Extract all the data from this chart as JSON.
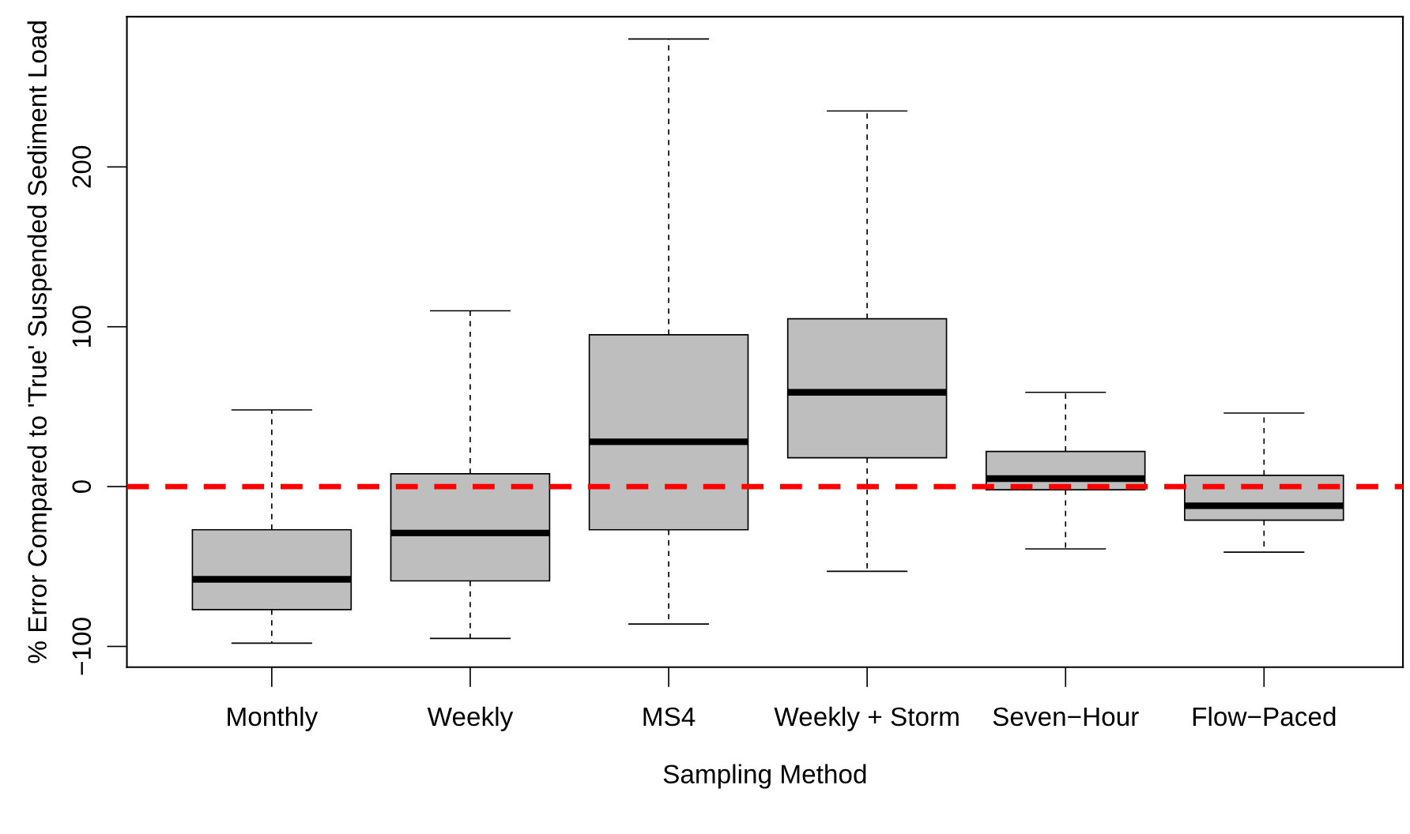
{
  "chart_data": {
    "type": "box",
    "xlabel": "Sampling Method",
    "ylabel": "% Error Compared to 'True' Suspended Sediment Load",
    "categories": [
      "Monthly",
      "Weekly",
      "MS4",
      "Weekly + Storm",
      "Seven−Hour",
      "Flow−Paced"
    ],
    "boxes": [
      {
        "low": -98,
        "q1": -77,
        "median": -58,
        "q3": -27,
        "high": 48
      },
      {
        "low": -95,
        "q1": -59,
        "median": -29,
        "q3": 8,
        "high": 110
      },
      {
        "low": -86,
        "q1": -27,
        "median": 28,
        "q3": 95,
        "high": 280
      },
      {
        "low": -53,
        "q1": 18,
        "median": 59,
        "q3": 105,
        "high": 235
      },
      {
        "low": -39,
        "q1": -2,
        "median": 5,
        "q3": 22,
        "high": 59
      },
      {
        "low": -41,
        "q1": -21,
        "median": -12,
        "q3": 7,
        "high": 46
      }
    ],
    "color": "#bebebe",
    "ylim": [
      -113,
      294
    ],
    "yticks": [
      -100,
      0,
      100,
      200
    ],
    "ref_lines": [
      {
        "axis": "y",
        "value": 0,
        "color": "#ff0000",
        "line_style": "dashed"
      }
    ],
    "grid": false,
    "legend": false
  }
}
